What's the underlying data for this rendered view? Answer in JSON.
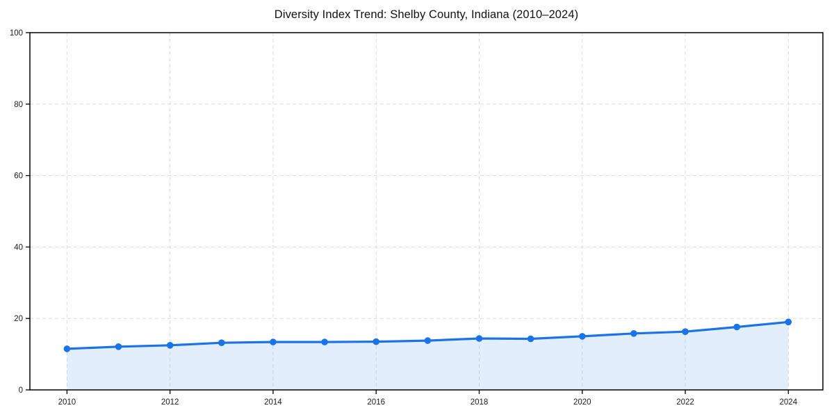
{
  "chart_data": {
    "type": "line",
    "title": "Diversity Index Trend: Shelby County, Indiana (2010–2024)",
    "xlabel": "",
    "ylabel": "",
    "x": [
      2010,
      2011,
      2012,
      2013,
      2014,
      2015,
      2016,
      2017,
      2018,
      2019,
      2020,
      2021,
      2022,
      2023,
      2024
    ],
    "series": [
      {
        "name": "Diversity Index",
        "values": [
          11.5,
          12.1,
          12.5,
          13.2,
          13.4,
          13.4,
          13.5,
          13.8,
          14.4,
          14.3,
          15.0,
          15.8,
          16.3,
          17.6,
          19.0
        ]
      }
    ],
    "xlim": [
      2009.28,
      2024.67
    ],
    "ylim": [
      0,
      100
    ],
    "x_ticks": [
      2010,
      2012,
      2014,
      2016,
      2018,
      2020,
      2022,
      2024
    ],
    "y_ticks": [
      0,
      20,
      40,
      60,
      80,
      100
    ],
    "grid": "dashed",
    "legend": "none",
    "area_fill": true,
    "colors": {
      "line": "#1a73e8",
      "marker": "#1a73e8",
      "fill": "#1a73e8",
      "fill_opacity": 0.12,
      "grid": "#dcdcdc",
      "axis_frame": "#000000",
      "tick_labels": "#1a1a1a",
      "title": "#111111"
    }
  }
}
